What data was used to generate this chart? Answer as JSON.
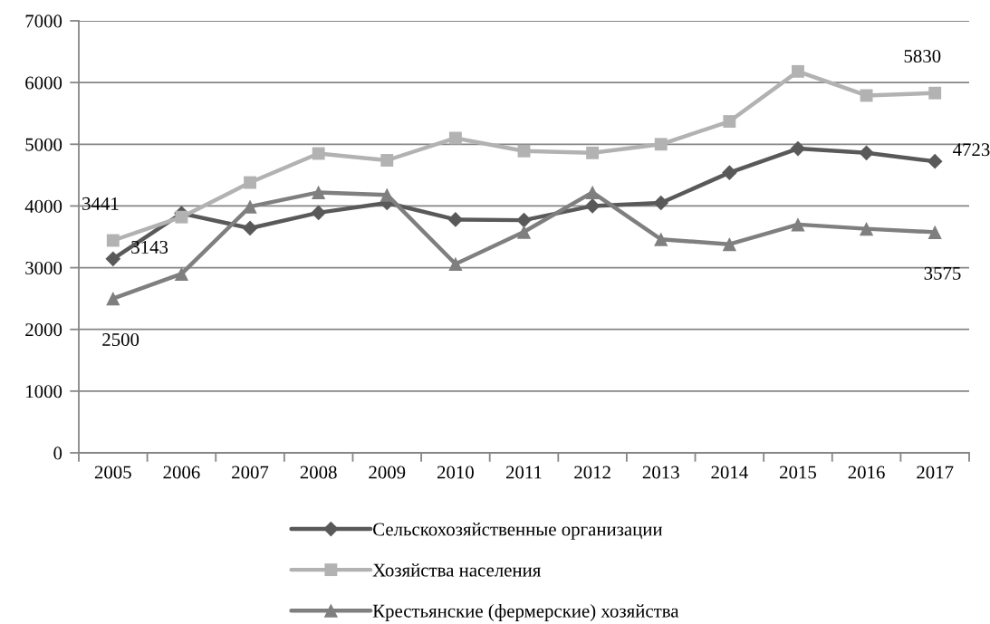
{
  "chart_data": {
    "type": "line",
    "categories": [
      "2005",
      "2006",
      "2007",
      "2008",
      "2009",
      "2010",
      "2011",
      "2012",
      "2013",
      "2014",
      "2015",
      "2016",
      "2017"
    ],
    "series": [
      {
        "name": "Сельскохозяйственные организации",
        "color": "#595959",
        "marker": "diamond",
        "values": [
          3143,
          3880,
          3640,
          3890,
          4050,
          3780,
          3770,
          4000,
          4050,
          4540,
          4930,
          4860,
          4723
        ],
        "value_labels": [
          "3143",
          null,
          null,
          null,
          null,
          null,
          null,
          null,
          null,
          null,
          null,
          null,
          "4723"
        ]
      },
      {
        "name": "Хозяйства населения",
        "color": "#b2b2b2",
        "marker": "square",
        "values": [
          3441,
          3820,
          4380,
          4850,
          4740,
          5100,
          4890,
          4860,
          5000,
          5370,
          6180,
          5790,
          5830
        ],
        "value_labels": [
          "3441",
          null,
          null,
          null,
          null,
          null,
          null,
          null,
          null,
          null,
          null,
          null,
          "5830"
        ]
      },
      {
        "name": "Крестьянские (фермерские) хозяйства",
        "color": "#7f7f7f",
        "marker": "triangle",
        "values": [
          2500,
          2900,
          3990,
          4220,
          4180,
          3060,
          3580,
          4220,
          3460,
          3380,
          3700,
          3630,
          3575
        ],
        "value_labels": [
          "2500",
          null,
          null,
          null,
          null,
          null,
          null,
          null,
          null,
          null,
          null,
          null,
          "3575"
        ]
      }
    ],
    "ylim": [
      0,
      7000
    ],
    "yticks": [
      0,
      1000,
      2000,
      3000,
      4000,
      5000,
      6000,
      7000
    ],
    "grid": "y",
    "legend": "bottom",
    "line_style": "solid"
  }
}
